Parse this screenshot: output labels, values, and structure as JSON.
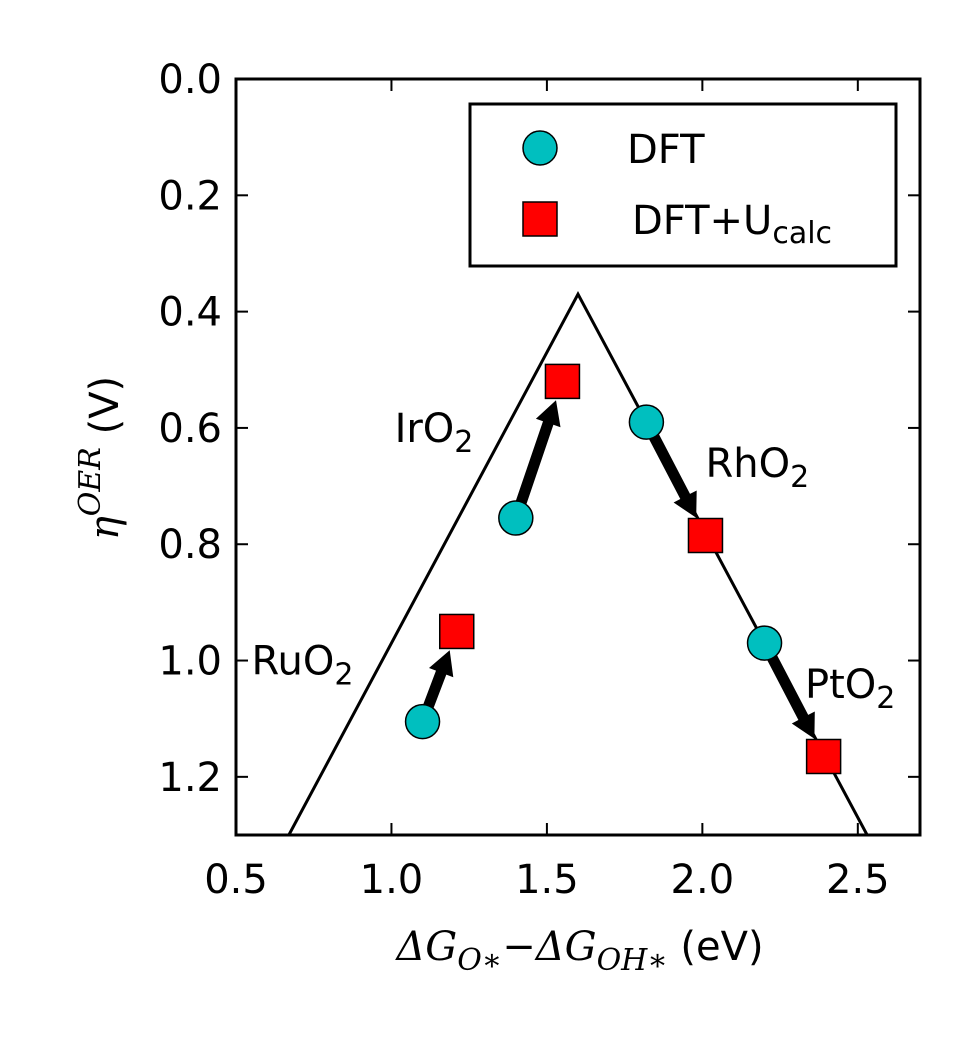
{
  "chart_data": {
    "type": "scatter",
    "xlabel": {
      "math_main": "ΔG",
      "math_sub1": "O∗",
      "minus": "−",
      "math_main2": "ΔG",
      "math_sub2": "OH∗",
      "unit": "(eV)"
    },
    "ylabel": {
      "math_main": "η",
      "math_sup": "OER",
      "unit": "(V)"
    },
    "xlim": [
      0.5,
      2.7
    ],
    "ylim": [
      1.3,
      0.0
    ],
    "y_inverted": true,
    "xticks": [
      "0.5",
      "1.0",
      "1.5",
      "2.0",
      "2.5"
    ],
    "yticks": [
      "0.0",
      "0.2",
      "0.4",
      "0.6",
      "0.8",
      "1.0",
      "1.2"
    ],
    "volcano_line": [
      [
        0.67,
        1.3
      ],
      [
        1.6,
        0.37
      ],
      [
        2.53,
        1.3
      ]
    ],
    "series": [
      {
        "name": "DFT",
        "marker": "circle",
        "color": "#00bfbf",
        "points": [
          {
            "x": 1.1,
            "y": 1.105
          },
          {
            "x": 1.4,
            "y": 0.755
          },
          {
            "x": 1.82,
            "y": 0.59
          },
          {
            "x": 2.2,
            "y": 0.97
          }
        ]
      },
      {
        "name": "DFT+U",
        "name_sub": "calc",
        "marker": "square",
        "color": "#ff0000",
        "points": [
          {
            "x": 1.21,
            "y": 0.95
          },
          {
            "x": 1.55,
            "y": 0.52
          },
          {
            "x": 2.01,
            "y": 0.785
          },
          {
            "x": 2.39,
            "y": 1.165
          }
        ]
      }
    ],
    "arrows": [
      {
        "from": [
          1.1,
          1.105
        ],
        "to": [
          1.21,
          0.95
        ]
      },
      {
        "from": [
          1.4,
          0.755
        ],
        "to": [
          1.55,
          0.52
        ]
      },
      {
        "from": [
          1.82,
          0.59
        ],
        "to": [
          2.01,
          0.785
        ]
      },
      {
        "from": [
          2.2,
          0.97
        ],
        "to": [
          2.39,
          1.165
        ]
      }
    ],
    "annotations": [
      {
        "main": "RuO",
        "sub": "2",
        "x": 0.55,
        "y": 1.0
      },
      {
        "main": "IrO",
        "sub": "2",
        "x": 1.01,
        "y": 0.6
      },
      {
        "main": "RhO",
        "sub": "2",
        "x": 2.01,
        "y": 0.66
      },
      {
        "main": "PtO",
        "sub": "2",
        "x": 2.33,
        "y": 1.04
      }
    ],
    "legend": {
      "position": "top-right",
      "entries": [
        {
          "label": "DFT",
          "sub": ""
        },
        {
          "label": "DFT+U",
          "sub": "calc"
        }
      ]
    },
    "grid": false
  }
}
